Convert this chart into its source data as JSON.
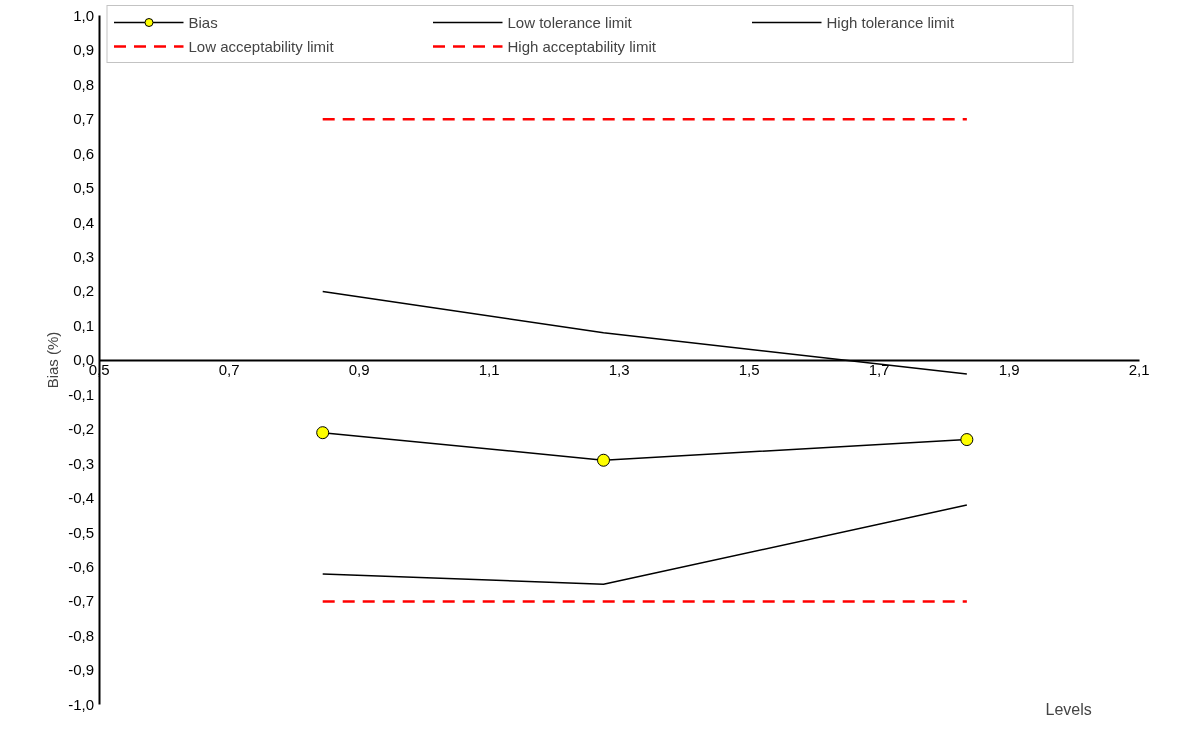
{
  "chart_data": {
    "type": "line",
    "xlabel": "Levels",
    "ylabel": "Bias (%)",
    "x": [
      0.844,
      1.276,
      1.835
    ],
    "series": [
      {
        "name": "Bias",
        "color": "#000000",
        "marker": "circle",
        "colors": [
          "#ffff00",
          "#ffff00",
          "#ffff00"
        ],
        "line_style": "solid",
        "values": [
          -0.21,
          -0.29,
          -0.23
        ]
      },
      {
        "name": "Low tolerance limit",
        "color": "#000000",
        "marker": "none",
        "line_style": "solid",
        "values": [
          -0.62,
          -0.65,
          -0.42
        ]
      },
      {
        "name": "High tolerance limit",
        "color": "#000000",
        "marker": "none",
        "line_style": "solid",
        "values": [
          0.2,
          0.08,
          -0.04
        ]
      },
      {
        "name": "Low acceptability limit",
        "color": "#ff0000",
        "marker": "none",
        "line_style": "dashed",
        "values": [
          -0.7,
          -0.7,
          -0.7
        ]
      },
      {
        "name": "High acceptability limit",
        "color": "#ff0000",
        "marker": "none",
        "line_style": "dashed",
        "values": [
          0.7,
          0.7,
          0.7
        ]
      }
    ],
    "xlim": [
      0.5,
      2.1
    ],
    "xticks": [
      {
        "value": 0.5,
        "label": "0,5"
      },
      {
        "value": 0.7,
        "label": "0,7"
      },
      {
        "value": 0.9,
        "label": "0,9"
      },
      {
        "value": 1.1,
        "label": "1,1"
      },
      {
        "value": 1.3,
        "label": "1,3"
      },
      {
        "value": 1.5,
        "label": "1,5"
      },
      {
        "value": 1.7,
        "label": "1,7"
      },
      {
        "value": 1.9,
        "label": "1,9"
      },
      {
        "value": 2.1,
        "label": "2,1"
      }
    ],
    "ylim": [
      -1.0,
      1.0
    ],
    "yticks": [
      {
        "value": -1.0,
        "label": "-1,0"
      },
      {
        "value": -0.9,
        "label": "-0,9"
      },
      {
        "value": -0.8,
        "label": "-0,8"
      },
      {
        "value": -0.7,
        "label": "-0,7"
      },
      {
        "value": -0.6,
        "label": "-0,6"
      },
      {
        "value": -0.5,
        "label": "-0,5"
      },
      {
        "value": -0.4,
        "label": "-0,4"
      },
      {
        "value": -0.3,
        "label": "-0,3"
      },
      {
        "value": -0.2,
        "label": "-0,2"
      },
      {
        "value": -0.1,
        "label": "-0,1"
      },
      {
        "value": 0.0,
        "label": "0,0"
      },
      {
        "value": 0.1,
        "label": "0,1"
      },
      {
        "value": 0.2,
        "label": "0,2"
      },
      {
        "value": 0.3,
        "label": "0,3"
      },
      {
        "value": 0.4,
        "label": "0,4"
      },
      {
        "value": 0.5,
        "label": "0,5"
      },
      {
        "value": 0.6,
        "label": "0,6"
      },
      {
        "value": 0.7,
        "label": "0,7"
      },
      {
        "value": 0.8,
        "label": "0,8"
      },
      {
        "value": 0.9,
        "label": "0,9"
      },
      {
        "value": 1.0,
        "label": "1,0"
      }
    ],
    "grid": false,
    "legend": "top"
  }
}
